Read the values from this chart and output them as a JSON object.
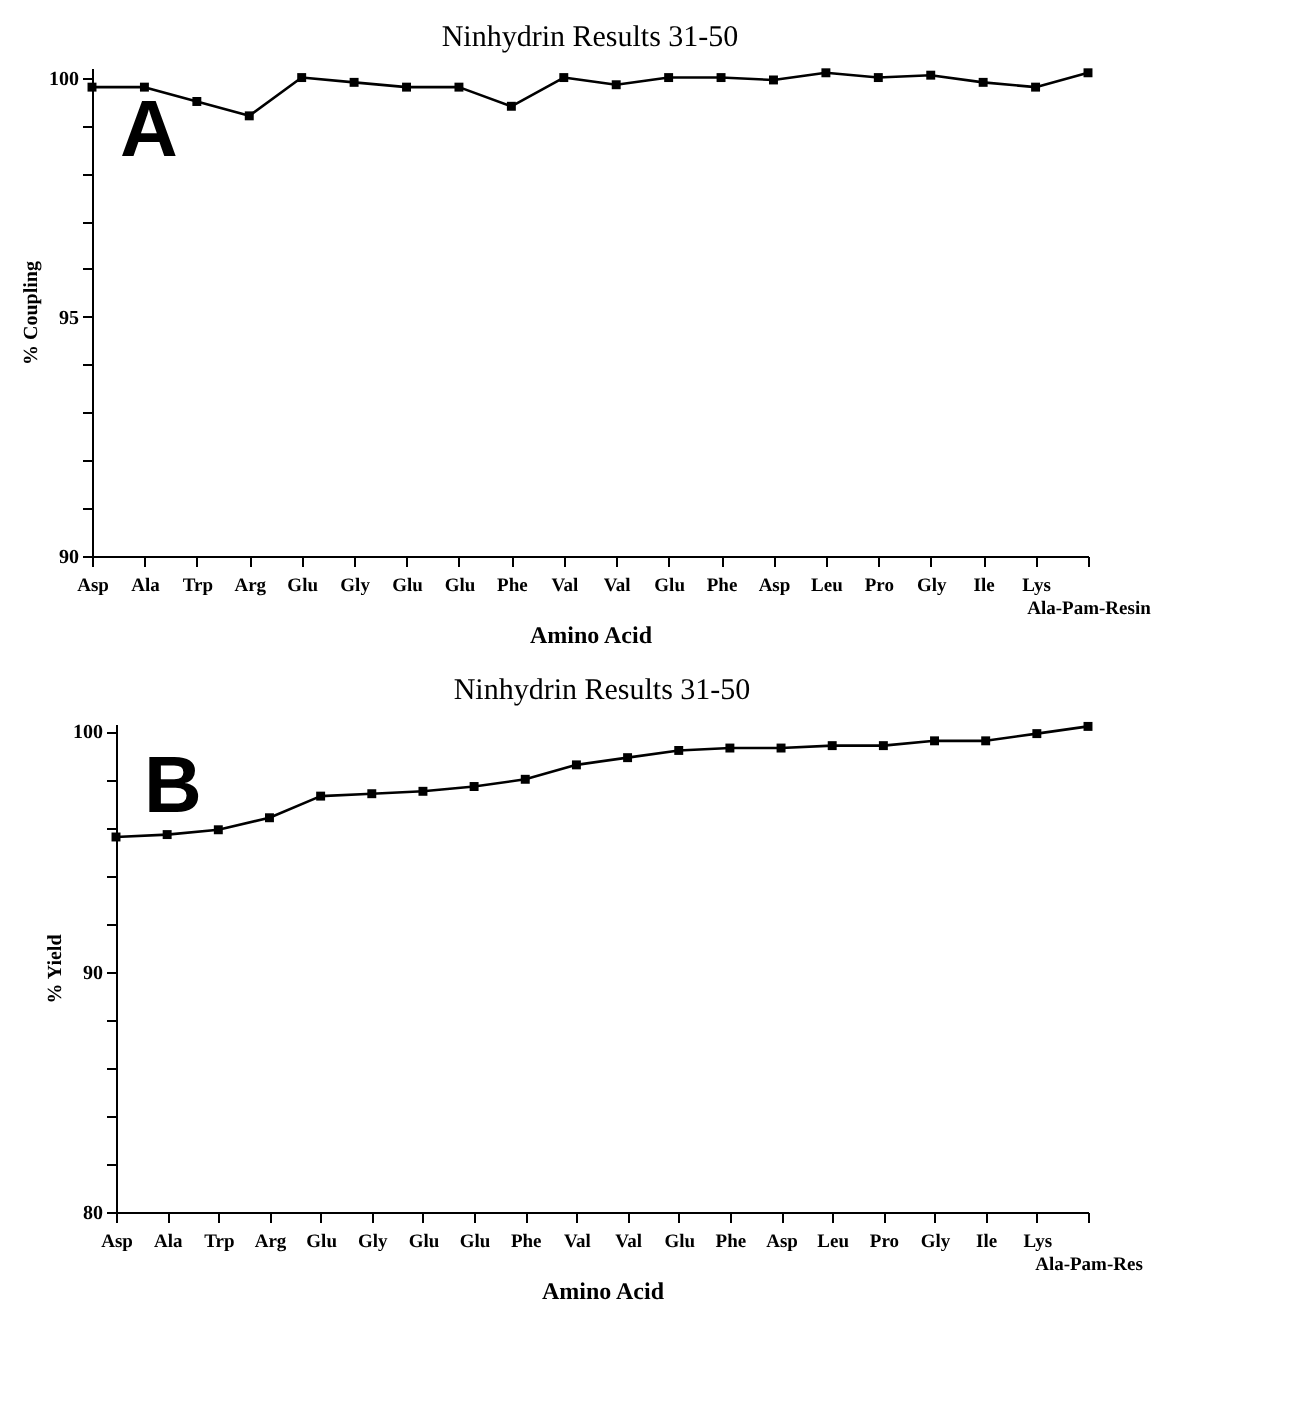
{
  "chart_data": [
    {
      "type": "line",
      "title": "Ninhydrin Results 31-50",
      "xlabel": "Amino Acid",
      "ylabel": "% Coupling",
      "annotations": [
        "A"
      ],
      "categories": [
        "Asp",
        "Ala",
        "Trp",
        "Arg",
        "Glu",
        "Gly",
        "Glu",
        "Glu",
        "Phe",
        "Val",
        "Val",
        "Glu",
        "Phe",
        "Asp",
        "Leu",
        "Pro",
        "Gly",
        "Ile",
        "Lys",
        "Ala-Pam-Resin"
      ],
      "series": [
        {
          "color": "#000000",
          "values": [
            99.8,
            99.8,
            99.5,
            99.2,
            100.0,
            99.9,
            99.8,
            99.8,
            99.4,
            100.0,
            99.85,
            100.0,
            100.0,
            99.95,
            100.1,
            100.0,
            100.05,
            99.9,
            99.8,
            100.1
          ]
        }
      ],
      "ylim": [
        90,
        100.2
      ],
      "yticks": [
        90,
        {
          "value": 91,
          "label": null
        },
        {
          "value": 92,
          "label": null
        },
        {
          "value": 93,
          "label": null
        },
        {
          "value": 94,
          "label": null
        },
        95,
        {
          "value": 96,
          "label": null
        },
        {
          "value": 97,
          "label": null
        },
        {
          "value": 98,
          "label": null
        },
        {
          "value": 99,
          "label": null
        },
        100
      ],
      "grid": false,
      "marker": "square",
      "line_style": "solid"
    },
    {
      "type": "line",
      "title": "Ninhydrin Results 31-50",
      "xlabel": "Amino Acid",
      "ylabel": "% Yield",
      "annotations": [
        "B"
      ],
      "categories": [
        "Asp",
        "Ala",
        "Trp",
        "Arg",
        "Glu",
        "Gly",
        "Glu",
        "Glu",
        "Phe",
        "Val",
        "Val",
        "Glu",
        "Phe",
        "Asp",
        "Leu",
        "Pro",
        "Gly",
        "Ile",
        "Lys",
        "Ala-Pam-Res"
      ],
      "series": [
        {
          "color": "#000000",
          "values": [
            95.6,
            95.7,
            95.9,
            96.4,
            97.3,
            97.4,
            97.5,
            97.7,
            98.0,
            98.6,
            98.9,
            99.2,
            99.3,
            99.3,
            99.4,
            99.4,
            99.6,
            99.6,
            99.9,
            100.2
          ]
        }
      ],
      "ylim": [
        80,
        100.3
      ],
      "yticks": [
        80,
        {
          "value": 82,
          "label": null
        },
        {
          "value": 84,
          "label": null
        },
        {
          "value": 86,
          "label": null
        },
        {
          "value": 88,
          "label": null
        },
        90,
        {
          "value": 92,
          "label": null
        },
        {
          "value": 94,
          "label": null
        },
        {
          "value": 96,
          "label": null
        },
        {
          "value": 98,
          "label": null
        },
        100
      ],
      "grid": false,
      "marker": "square",
      "line_style": "solid"
    }
  ]
}
